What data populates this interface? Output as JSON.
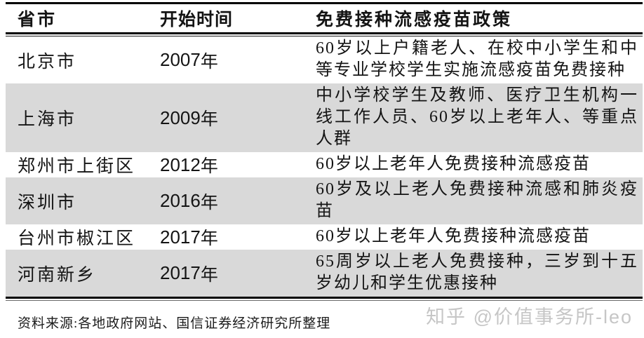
{
  "table": {
    "columns": [
      {
        "key": "city",
        "label": "省市"
      },
      {
        "key": "year",
        "label": "开始时间"
      },
      {
        "key": "policy",
        "label": "免费接种流感疫苗政策"
      }
    ],
    "rows": [
      {
        "city": "北京市",
        "year": "2007",
        "year_suffix": "年",
        "policy": "60岁以上户籍老人、在校中小学生和中等专业学校学生实施流感疫苗免费接种"
      },
      {
        "city": "上海市",
        "year": "2009",
        "year_suffix": "年",
        "policy": "中小学校学生及教师、医疗卫生机构一线工作人员、60岁以上老年人、等重点人群"
      },
      {
        "city": "郑州市上街区",
        "year": "2012",
        "year_suffix": "年",
        "policy": "60岁以上老年人免费接种流感疫苗"
      },
      {
        "city": "深圳市",
        "year": "2016",
        "year_suffix": "年",
        "policy": "60岁及以上老人免费接种流感和肺炎疫苗"
      },
      {
        "city": "台州市椒江区",
        "year": "2017",
        "year_suffix": "年",
        "policy": "60岁以上老年人免费接种流感疫苗"
      },
      {
        "city": "河南新乡",
        "year": "2017",
        "year_suffix": "年",
        "policy": "65周岁以上老人免费接种，三岁到十五岁幼儿和学生优惠接种"
      }
    ]
  },
  "footer": {
    "source": "资料来源:各地政府网站、国信证券经济研究所整理"
  },
  "watermark": {
    "text": "知乎 @价值事务所-leo"
  },
  "colors": {
    "stripe": "#d9d9d9",
    "rule": "#000000",
    "text": "#141414",
    "watermark": "#c6c6c6"
  }
}
